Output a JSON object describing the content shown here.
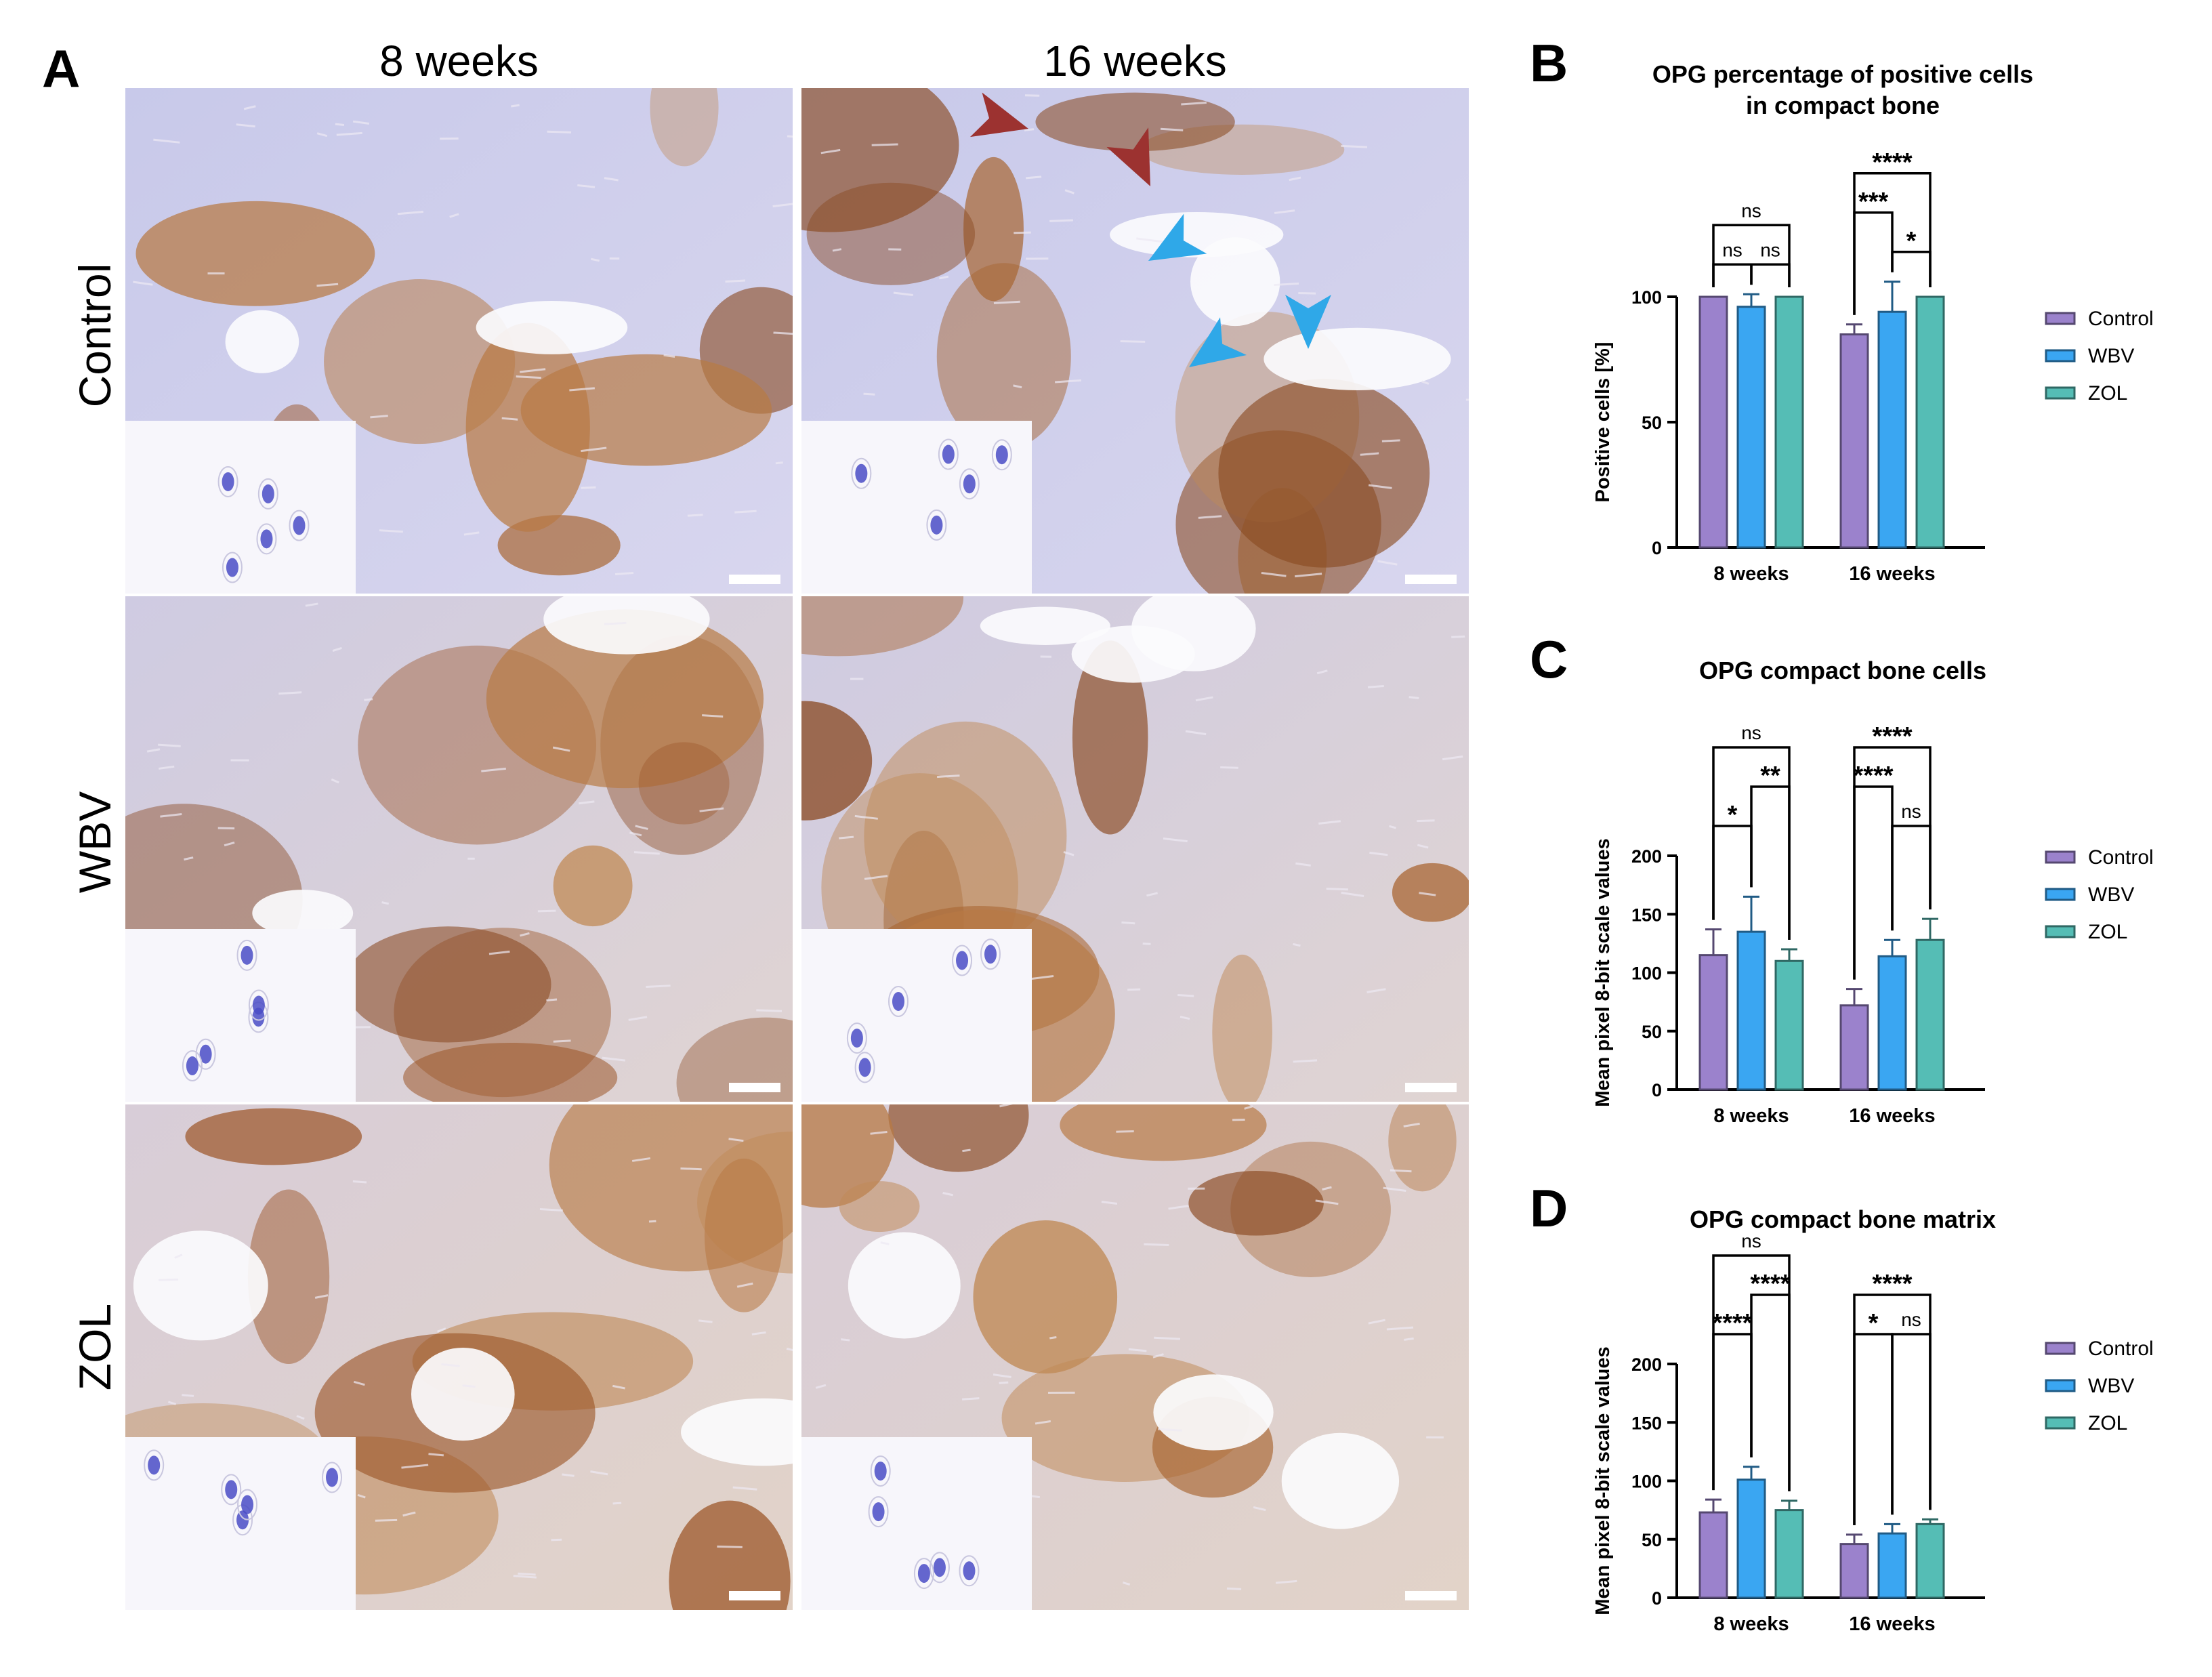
{
  "panel_a": {
    "letter": "A",
    "columns": [
      "8 weeks",
      "16 weeks"
    ],
    "rows": [
      "Control",
      "WBV",
      "ZOL"
    ]
  },
  "colors": {
    "control": "#9b82cc",
    "wbv": "#3aa6f2",
    "zol": "#55bdb5",
    "arrow_red": "#9c3230",
    "arrow_blue": "#2fa8e8",
    "tissue_bg": "#c9c8e6",
    "stain_brown": "#a45c2c"
  },
  "charts": [
    {
      "id": "B",
      "letter": "B",
      "title_lines": [
        "OPG percentage of positive cells",
        "in compact bone"
      ],
      "chart_data": {
        "type": "bar",
        "categories": [
          "8 weeks",
          "16 weeks"
        ],
        "ylabel": "Positive cells [%]",
        "ylim": [
          0,
          100
        ],
        "yticks": [
          0,
          50,
          100
        ],
        "series": [
          {
            "name": "Control",
            "values": [
              100,
              85
            ],
            "errors": [
              0,
              4
            ]
          },
          {
            "name": "WBV",
            "values": [
              96,
              94
            ],
            "errors": [
              5,
              12
            ]
          },
          {
            "name": "ZOL",
            "values": [
              100,
              100
            ],
            "errors": [
              0,
              0
            ]
          }
        ],
        "legend": [
          "Control",
          "WBV",
          "ZOL"
        ],
        "legend_position": "right",
        "brackets": [
          {
            "group": 0,
            "from": 0,
            "to": 2,
            "label": "ns",
            "level": 2
          },
          {
            "group": 0,
            "from": 0,
            "to": 1,
            "label": "ns",
            "level": 1
          },
          {
            "group": 0,
            "from": 1,
            "to": 2,
            "label": "ns",
            "level": 1
          },
          {
            "group": 1,
            "from": 0,
            "to": 2,
            "label": "****",
            "level": 3
          },
          {
            "group": 1,
            "from": 0,
            "to": 1,
            "label": "***",
            "level": 2
          },
          {
            "group": 1,
            "from": 1,
            "to": 2,
            "label": "*",
            "level": 1
          }
        ]
      }
    },
    {
      "id": "C",
      "letter": "C",
      "title_lines": [
        "OPG compact bone cells"
      ],
      "chart_data": {
        "type": "bar",
        "categories": [
          "8 weeks",
          "16 weeks"
        ],
        "ylabel": "Mean pixel 8-bit scale values",
        "ylim": [
          0,
          200
        ],
        "yticks": [
          0,
          50,
          100,
          150,
          200
        ],
        "series": [
          {
            "name": "Control",
            "values": [
              115,
              72
            ],
            "errors": [
              22,
              14
            ]
          },
          {
            "name": "WBV",
            "values": [
              135,
              114
            ],
            "errors": [
              30,
              14
            ]
          },
          {
            "name": "ZOL",
            "values": [
              110,
              128
            ],
            "errors": [
              10,
              18
            ]
          }
        ],
        "legend": [
          "Control",
          "WBV",
          "ZOL"
        ],
        "legend_position": "right",
        "brackets": [
          {
            "group": 0,
            "from": 0,
            "to": 2,
            "label": "ns",
            "level": 3
          },
          {
            "group": 0,
            "from": 1,
            "to": 2,
            "label": "**",
            "level": 2
          },
          {
            "group": 0,
            "from": 0,
            "to": 1,
            "label": "*",
            "level": 1
          },
          {
            "group": 1,
            "from": 0,
            "to": 2,
            "label": "****",
            "level": 3
          },
          {
            "group": 1,
            "from": 0,
            "to": 1,
            "label": "****",
            "level": 2
          },
          {
            "group": 1,
            "from": 1,
            "to": 2,
            "label": "ns",
            "level": 1
          }
        ]
      }
    },
    {
      "id": "D",
      "letter": "D",
      "title_lines": [
        "OPG compact bone matrix"
      ],
      "chart_data": {
        "type": "bar",
        "categories": [
          "8 weeks",
          "16 weeks"
        ],
        "ylabel": "Mean pixel 8-bit scale values",
        "ylim": [
          0,
          200
        ],
        "yticks": [
          0,
          50,
          100,
          150,
          200
        ],
        "series": [
          {
            "name": "Control",
            "values": [
              73,
              46
            ],
            "errors": [
              11,
              8
            ]
          },
          {
            "name": "WBV",
            "values": [
              101,
              55
            ],
            "errors": [
              11,
              8
            ]
          },
          {
            "name": "ZOL",
            "values": [
              75,
              63
            ],
            "errors": [
              8,
              4
            ]
          }
        ],
        "legend": [
          "Control",
          "WBV",
          "ZOL"
        ],
        "legend_position": "right",
        "brackets": [
          {
            "group": 0,
            "from": 0,
            "to": 2,
            "label": "ns",
            "level": 3
          },
          {
            "group": 0,
            "from": 1,
            "to": 2,
            "label": "****",
            "level": 2
          },
          {
            "group": 0,
            "from": 0,
            "to": 1,
            "label": "****",
            "level": 1
          },
          {
            "group": 1,
            "from": 0,
            "to": 2,
            "label": "****",
            "level": 2
          },
          {
            "group": 1,
            "from": 0,
            "to": 1,
            "label": "*",
            "level": 1
          },
          {
            "group": 1,
            "from": 1,
            "to": 2,
            "label": "ns",
            "level": 1
          }
        ]
      }
    }
  ]
}
